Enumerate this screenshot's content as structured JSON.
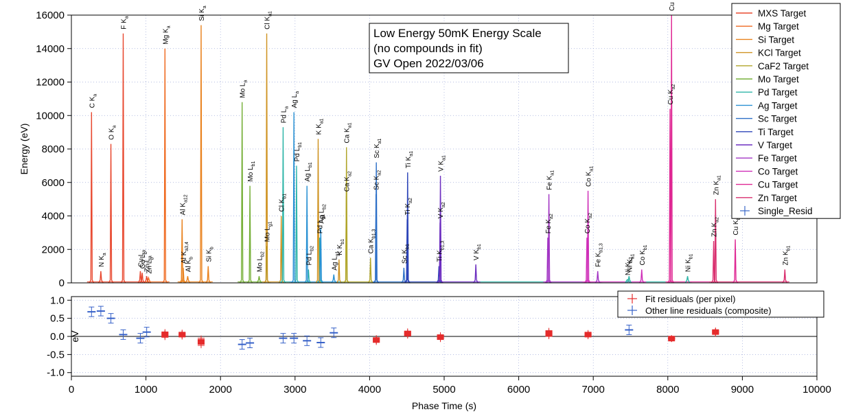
{
  "chart_data": {
    "type": "line",
    "xlabel": "Phase Time (s)",
    "xlim": [
      0,
      10000
    ],
    "x_ticks": [
      "0",
      "1000",
      "2000",
      "3000",
      "4000",
      "5000",
      "6000",
      "7000",
      "8000",
      "9000",
      "10000"
    ],
    "top_panel": {
      "ylabel": "Energy (eV)",
      "ylim": [
        0,
        16000
      ],
      "y_ticks": [
        "0",
        "2000",
        "4000",
        "6000",
        "8000",
        "10000",
        "12000",
        "14000",
        "16000"
      ],
      "annotation": [
        "Low Energy 50mK Energy Scale",
        "(no compounds in fit)",
        "GV Open 2022/03/06"
      ],
      "legend_position": "top-right",
      "series": [
        {
          "name": "MXS Target",
          "color": "#e8482f"
        },
        {
          "name": "Mg Target",
          "color": "#ef6a20"
        },
        {
          "name": "Si Target",
          "color": "#e9821e"
        },
        {
          "name": "KCl Target",
          "color": "#cf9322"
        },
        {
          "name": "CaF2 Target",
          "color": "#b0a52a"
        },
        {
          "name": "Mo Target",
          "color": "#77b03a"
        },
        {
          "name": "Pd Target",
          "color": "#2eb5a8"
        },
        {
          "name": "Ag Target",
          "color": "#2a91d3"
        },
        {
          "name": "Sc Target",
          "color": "#2c6fc7"
        },
        {
          "name": "Ti Target",
          "color": "#2d45b8"
        },
        {
          "name": "V Target",
          "color": "#6d2fc0"
        },
        {
          "name": "Fe Target",
          "color": "#a235c4"
        },
        {
          "name": "Co Target",
          "color": "#cf2fb8"
        },
        {
          "name": "Cu Target",
          "color": "#df2793"
        },
        {
          "name": "Zn Target",
          "color": "#d92e6e"
        },
        {
          "name": "Single_Resid",
          "color": "#3a67c8"
        }
      ],
      "peaks": [
        {
          "label": "C K",
          "sub": "a",
          "x": 270,
          "y": 10200,
          "s": 0
        },
        {
          "label": "N K",
          "sub": "a",
          "x": 395,
          "y": 700,
          "s": 0
        },
        {
          "label": "O K",
          "sub": "a",
          "x": 530,
          "y": 8300,
          "s": 0
        },
        {
          "label": "F K",
          "sub": "a",
          "x": 695,
          "y": 14900,
          "s": 0
        },
        {
          "label": "Cu L",
          "sub": "a",
          "x": 925,
          "y": 700,
          "s": 0
        },
        {
          "label": "Cu L",
          "sub": "b",
          "x": 950,
          "y": 600,
          "s": 0
        },
        {
          "label": "Zn L",
          "sub": "a",
          "x": 1010,
          "y": 400,
          "s": 0
        },
        {
          "label": "Zn L",
          "sub": "b",
          "x": 1035,
          "y": 300,
          "s": 1
        },
        {
          "label": "Mg K",
          "sub": "a",
          "x": 1255,
          "y": 14000,
          "s": 1
        },
        {
          "label": "Al K",
          "sub": "a12",
          "x": 1485,
          "y": 3800,
          "s": 2
        },
        {
          "label": "Al K",
          "sub": "a3,4",
          "x": 1500,
          "y": 900,
          "s": 2
        },
        {
          "label": "Al K",
          "sub": "b",
          "x": 1560,
          "y": 400,
          "s": 2
        },
        {
          "label": "Si K",
          "sub": "a",
          "x": 1740,
          "y": 15400,
          "s": 2
        },
        {
          "label": "Si K",
          "sub": "b",
          "x": 1835,
          "y": 1000,
          "s": 2
        },
        {
          "label": "Mo L",
          "sub": "a",
          "x": 2290,
          "y": 10800,
          "s": 5
        },
        {
          "label": "Mo L",
          "sub": "b1",
          "x": 2395,
          "y": 5800,
          "s": 5
        },
        {
          "label": "Mo L",
          "sub": "b2",
          "x": 2518,
          "y": 400,
          "s": 5
        },
        {
          "label": "Mo L",
          "sub": "g1",
          "x": 2620,
          "y": 2200,
          "s": 5
        },
        {
          "label": "Cl K",
          "sub": "a1",
          "x": 2620,
          "y": 14900,
          "s": 3
        },
        {
          "label": "Cl K",
          "sub": "b1",
          "x": 2815,
          "y": 4000,
          "s": 3
        },
        {
          "label": "Pd L",
          "sub": "a",
          "x": 2840,
          "y": 9300,
          "s": 6
        },
        {
          "label": "Pd L",
          "sub": "b1",
          "x": 3020,
          "y": 7000,
          "s": 6
        },
        {
          "label": "Pd L",
          "sub": "b2",
          "x": 3180,
          "y": 800,
          "s": 6
        },
        {
          "label": "Pd L",
          "sub": "g1",
          "x": 3330,
          "y": 2700,
          "s": 6
        },
        {
          "label": "Ag L",
          "sub": "a",
          "x": 2985,
          "y": 10200,
          "s": 7
        },
        {
          "label": "Ag L",
          "sub": "b1",
          "x": 3160,
          "y": 5800,
          "s": 7
        },
        {
          "label": "Ag L",
          "sub": "b2",
          "x": 3345,
          "y": 3300,
          "s": 7
        },
        {
          "label": "Ag L",
          "sub": "g1",
          "x": 3520,
          "y": 500,
          "s": 7
        },
        {
          "label": "K K",
          "sub": "a1",
          "x": 3310,
          "y": 8600,
          "s": 3
        },
        {
          "label": "K K",
          "sub": "b1",
          "x": 3590,
          "y": 1400,
          "s": 3
        },
        {
          "label": "Ca K",
          "sub": "a1",
          "x": 3690,
          "y": 8100,
          "s": 4
        },
        {
          "label": "Ca K",
          "sub": "a2",
          "x": 3688,
          "y": 5200,
          "s": 4
        },
        {
          "label": "Ca K",
          "sub": "b1,3",
          "x": 4012,
          "y": 1500,
          "s": 4
        },
        {
          "label": "Sc K",
          "sub": "a1",
          "x": 4090,
          "y": 7200,
          "s": 8
        },
        {
          "label": "Sc K",
          "sub": "a2",
          "x": 4086,
          "y": 5300,
          "s": 8
        },
        {
          "label": "Sc K",
          "sub": "b1",
          "x": 4460,
          "y": 900,
          "s": 8
        },
        {
          "label": "Ti K",
          "sub": "a1",
          "x": 4510,
          "y": 6600,
          "s": 9
        },
        {
          "label": "Ti K",
          "sub": "a2",
          "x": 4504,
          "y": 3800,
          "s": 9
        },
        {
          "label": "Ti K",
          "sub": "b1,3",
          "x": 4930,
          "y": 1000,
          "s": 9
        },
        {
          "label": "V K",
          "sub": "a1",
          "x": 4950,
          "y": 6400,
          "s": 10
        },
        {
          "label": "V K",
          "sub": "a2",
          "x": 4945,
          "y": 3600,
          "s": 10
        },
        {
          "label": "V K",
          "sub": "b1",
          "x": 5425,
          "y": 1100,
          "s": 10
        },
        {
          "label": "Fe K",
          "sub": "a1",
          "x": 6405,
          "y": 5300,
          "s": 11
        },
        {
          "label": "Fe K",
          "sub": "a2",
          "x": 6390,
          "y": 2700,
          "s": 11
        },
        {
          "label": "Fe K",
          "sub": "b1,3",
          "x": 7060,
          "y": 700,
          "s": 11
        },
        {
          "label": "Co K",
          "sub": "a1",
          "x": 6930,
          "y": 5500,
          "s": 12
        },
        {
          "label": "Co K",
          "sub": "a2",
          "x": 6915,
          "y": 2700,
          "s": 12
        },
        {
          "label": "Co K",
          "sub": "b1",
          "x": 7650,
          "y": 800,
          "s": 12
        },
        {
          "label": "Ni K",
          "sub": "a1",
          "x": 7480,
          "y": 400,
          "s": 6
        },
        {
          "label": "Ni K",
          "sub": "a2",
          "x": 7460,
          "y": 200,
          "s": 6
        },
        {
          "label": "Ni K",
          "sub": "b1",
          "x": 8265,
          "y": 400,
          "s": 6
        },
        {
          "label": "Cu K",
          "sub": "a1",
          "x": 8050,
          "y": 16000,
          "s": 13
        },
        {
          "label": "Cu K",
          "sub": "a2",
          "x": 8030,
          "y": 10400,
          "s": 13
        },
        {
          "label": "Cu K",
          "sub": "b1,3",
          "x": 8905,
          "y": 2600,
          "s": 13
        },
        {
          "label": "Zn K",
          "sub": "a1",
          "x": 8640,
          "y": 5000,
          "s": 14
        },
        {
          "label": "Zn K",
          "sub": "a2",
          "x": 8615,
          "y": 2500,
          "s": 14
        },
        {
          "label": "Zn K",
          "sub": "b1",
          "x": 9570,
          "y": 800,
          "s": 14
        }
      ]
    },
    "bottom_panel": {
      "ylabel": "eV",
      "ylim": [
        -1.1,
        1.1
      ],
      "y_ticks": [
        "1.0",
        "0.5",
        "0.0",
        "-0.5",
        "-1.0"
      ],
      "legend": [
        {
          "name": "Fit residuals (per pixel)",
          "color": "#e52b2b"
        },
        {
          "name": "Other line residuals (composite)",
          "color": "#3560c8"
        }
      ],
      "fit_residuals": [
        {
          "x": 1255,
          "y": 0.05,
          "spread": 0.15
        },
        {
          "x": 1485,
          "y": 0.05,
          "spread": 0.12
        },
        {
          "x": 1740,
          "y": -0.15,
          "spread": 0.2
        },
        {
          "x": 4090,
          "y": -0.1,
          "spread": 0.12
        },
        {
          "x": 4510,
          "y": 0.08,
          "spread": 0.13
        },
        {
          "x": 4950,
          "y": -0.02,
          "spread": 0.12
        },
        {
          "x": 6405,
          "y": 0.08,
          "spread": 0.16
        },
        {
          "x": 6930,
          "y": 0.05,
          "spread": 0.1
        },
        {
          "x": 8050,
          "y": -0.06,
          "spread": 0.04
        },
        {
          "x": 8640,
          "y": 0.12,
          "spread": 0.1
        }
      ],
      "other_residuals": [
        {
          "x": 270,
          "y": 0.68
        },
        {
          "x": 395,
          "y": 0.7
        },
        {
          "x": 530,
          "y": 0.5
        },
        {
          "x": 695,
          "y": 0.05
        },
        {
          "x": 925,
          "y": -0.05
        },
        {
          "x": 1010,
          "y": 0.12
        },
        {
          "x": 2290,
          "y": -0.22
        },
        {
          "x": 2395,
          "y": -0.18
        },
        {
          "x": 2840,
          "y": -0.05
        },
        {
          "x": 2985,
          "y": -0.05
        },
        {
          "x": 3160,
          "y": -0.12
        },
        {
          "x": 3345,
          "y": -0.17
        },
        {
          "x": 3520,
          "y": 0.1
        },
        {
          "x": 7480,
          "y": 0.18
        }
      ]
    }
  }
}
